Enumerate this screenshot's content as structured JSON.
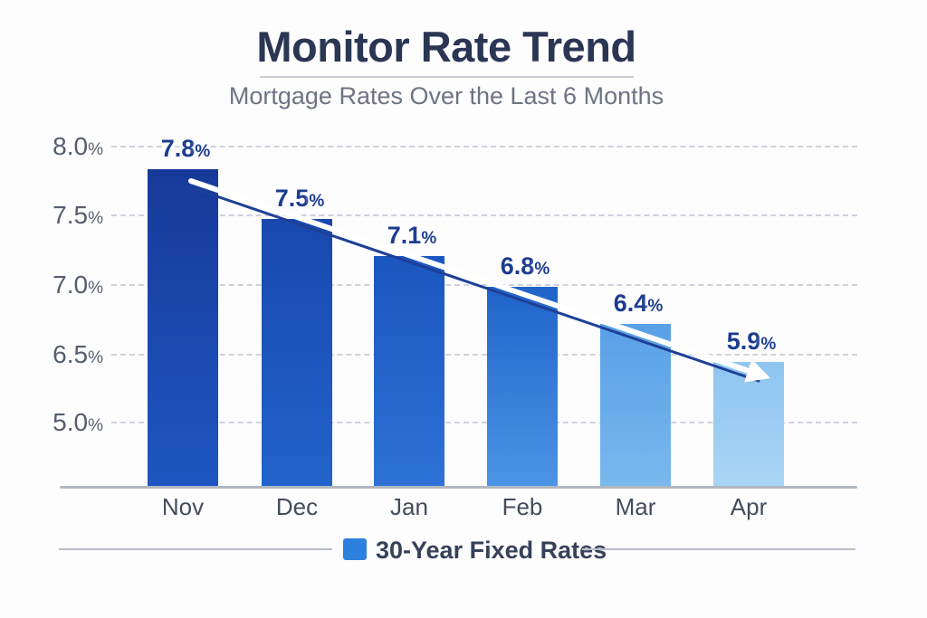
{
  "header": {
    "title": "Monitor Rate Trend",
    "subtitle": "Mortgage Rates Over the Last 6 Months"
  },
  "chart_data": {
    "type": "bar",
    "title": "Monitor Rate Trend",
    "subtitle": "Mortgage Rates Over the Last 6 Months",
    "categories": [
      "Nov",
      "Dec",
      "Jan",
      "Feb",
      "Mar",
      "Apr"
    ],
    "values": [
      7.8,
      7.5,
      7.1,
      6.8,
      6.4,
      5.9
    ],
    "unit": "%",
    "xlabel": "",
    "ylabel": "",
    "y_tick_labels": [
      "8.0",
      "7.5",
      "7.0",
      "6.5",
      "5.0"
    ],
    "grid": "horizontal-dashed",
    "legend_position": "bottom-center",
    "legend": {
      "label": "30-Year Fixed Rates",
      "swatch_color": "#2e80de"
    },
    "annotation": {
      "type": "downward-trend-arrow",
      "line_color": "#1e3f97",
      "highlight_color": "#ffffff"
    },
    "bar_colors": [
      {
        "top": "#173a99",
        "bottom": "#1e56c1"
      },
      {
        "top": "#1848ad",
        "bottom": "#2263cc"
      },
      {
        "top": "#1a56bf",
        "bottom": "#2e72d6"
      },
      {
        "top": "#2063c9",
        "bottom": "#4c95e6"
      },
      {
        "top": "#58a0e7",
        "bottom": "#7ab8ee"
      },
      {
        "top": "#8fc5f0",
        "bottom": "#a9d5f5"
      }
    ],
    "colors": {
      "value_label": "#1c3c8f",
      "axis_tick": "#565e6e",
      "month_label": "#434c5c",
      "title": "#2b3654",
      "subtitle": "#6d7482",
      "gridline": "#cdd2dd",
      "baseline": "#b2b8c2"
    }
  }
}
